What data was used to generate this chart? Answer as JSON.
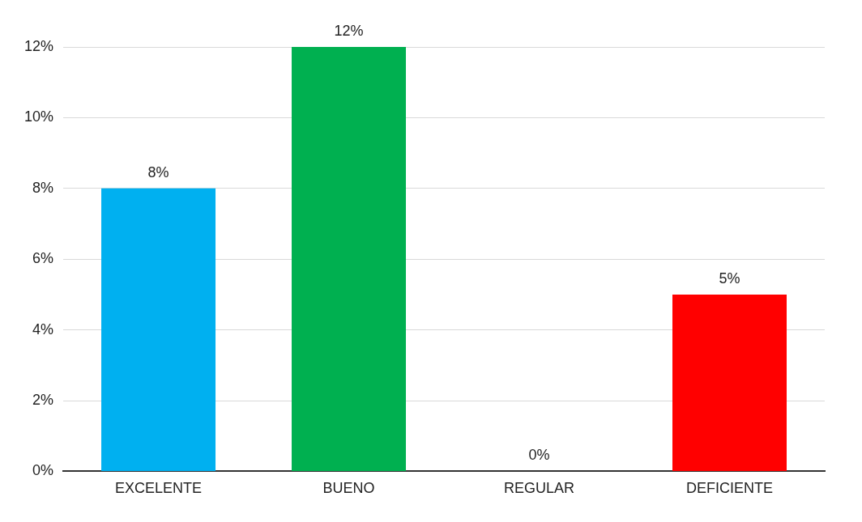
{
  "chart_data": {
    "type": "bar",
    "categories": [
      "EXCELENTE",
      "BUENO",
      "REGULAR",
      "DEFICIENTE"
    ],
    "values": [
      8,
      12,
      0,
      5
    ],
    "colors": [
      "#00b0f0",
      "#00b050",
      "#c8c800",
      "#ff0000"
    ],
    "value_labels": [
      "8%",
      "12%",
      "0%",
      "5%"
    ],
    "ylim": [
      0,
      12
    ],
    "yticks": [
      {
        "value": 0,
        "label": "0%"
      },
      {
        "value": 2,
        "label": "2%"
      },
      {
        "value": 4,
        "label": "4%"
      },
      {
        "value": 6,
        "label": "6%"
      },
      {
        "value": 8,
        "label": "8%"
      },
      {
        "value": 10,
        "label": "10%"
      },
      {
        "value": 12,
        "label": "12%"
      }
    ],
    "grid": "y",
    "legend": false
  }
}
